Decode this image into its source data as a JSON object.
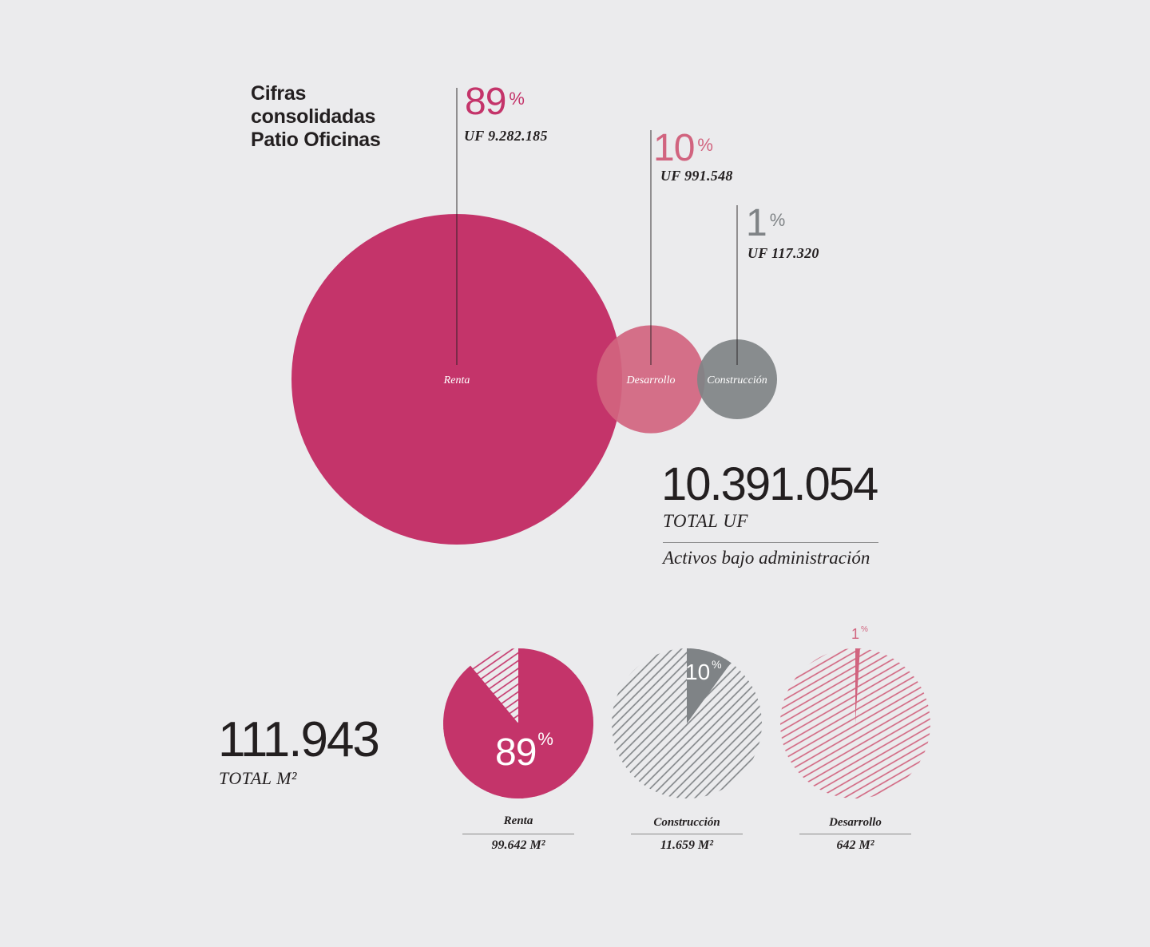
{
  "title": {
    "line1": "Cifras",
    "line2": "consolidadas",
    "line3": "Patio Oficinas"
  },
  "colors": {
    "renta": "#c4346a",
    "desarrollo": "#d1647f",
    "construccion": "#7f8386",
    "background": "#ebebed",
    "text": "#231f20"
  },
  "chart_data": [
    {
      "type": "bubble",
      "series": [
        {
          "category": "Renta",
          "percent": 89,
          "percent_symbol": "%",
          "value_label": "UF 9.282.185",
          "value": 9282185
        },
        {
          "category": "Desarrollo",
          "percent": 10,
          "percent_symbol": "%",
          "value_label": "UF 991.548",
          "value": 991548
        },
        {
          "category": "Construcción",
          "percent": 1,
          "percent_symbol": "%",
          "value_label": "UF 117.320",
          "value": 117320
        }
      ],
      "total": {
        "value": "10.391.054",
        "label": "TOTAL UF",
        "sublabel": "Activos bajo administración"
      }
    },
    {
      "type": "pie",
      "total": {
        "value": "111.943",
        "label": "TOTAL M²"
      },
      "pies": [
        {
          "category": "Renta",
          "percent": 89,
          "percent_symbol": "%",
          "area_label": "99.642 M²",
          "color": "#c4346a"
        },
        {
          "category": "Construcción",
          "percent": 10,
          "percent_symbol": "%",
          "area_label": "11.659 M²",
          "color": "#7f8386"
        },
        {
          "category": "Desarrollo",
          "percent": 1,
          "percent_symbol": "%",
          "area_label": "642 M²",
          "color": "#d1647f"
        }
      ]
    }
  ]
}
